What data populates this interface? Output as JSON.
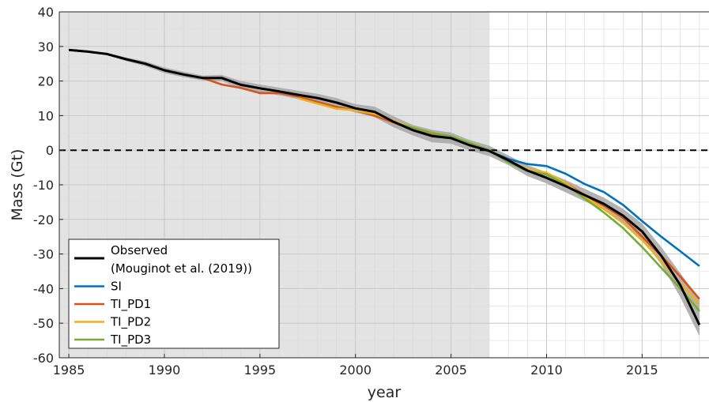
{
  "chart_data": {
    "type": "line",
    "title": "",
    "xlabel": "year",
    "ylabel": "Mass (Gt)",
    "xlim": [
      1984.5,
      2018.5
    ],
    "ylim": [
      -60,
      40
    ],
    "xticks": [
      1985,
      1990,
      1995,
      2000,
      2005,
      2010,
      2015
    ],
    "yticks": [
      -60,
      -50,
      -40,
      -30,
      -20,
      -10,
      0,
      10,
      20,
      30,
      40
    ],
    "grid": true,
    "shaded_region": {
      "x_start": 1984.5,
      "x_end": 2007,
      "color": "#e3e3e3"
    },
    "reference_line": {
      "y": 0,
      "style": "dashed",
      "color": "#000000"
    },
    "legend_position": "bottom-left",
    "legend": [
      {
        "label": "Observed",
        "label_line2": "(Mouginot et al. (2019))",
        "color": "#000000"
      },
      {
        "label": "SI",
        "color": "#0072BD"
      },
      {
        "label": "TI_PD1",
        "color": "#D95319"
      },
      {
        "label": "TI_PD2",
        "color": "#EDB120"
      },
      {
        "label": "TI_PD3",
        "color": "#77AC30"
      }
    ],
    "uncertainty_band": {
      "color": "#a6a6a6",
      "x": [
        1985,
        1986,
        1987,
        1988,
        1989,
        1990,
        1991,
        1992,
        1993,
        1994,
        1995,
        1996,
        1997,
        1998,
        1999,
        2000,
        2001,
        2002,
        2003,
        2004,
        2005,
        2006,
        2007,
        2008,
        2009,
        2010,
        2011,
        2012,
        2013,
        2014,
        2015,
        2016,
        2017,
        2018
      ],
      "upper": [
        29.3,
        28.8,
        28.1,
        26.8,
        25.7,
        23.9,
        22.7,
        21.6,
        21.8,
        20,
        19,
        18.1,
        17.2,
        16.3,
        15.1,
        13.3,
        12.6,
        9.8,
        7.3,
        5.9,
        5.1,
        2.9,
        1.3,
        -1.5,
        -4.3,
        -6.4,
        -8.6,
        -11.2,
        -13.7,
        -16.9,
        -21.2,
        -28,
        -35.5,
        -43.2
      ],
      "lower": [
        28.7,
        28.2,
        27.5,
        25.8,
        24.3,
        22.3,
        21.1,
        20.2,
        20,
        17.8,
        16.8,
        15.9,
        14.8,
        13.9,
        12.5,
        10.9,
        9.6,
        6.6,
        4.3,
        2.3,
        1.9,
        -0.1,
        -1.7,
        -4.3,
        -7.5,
        -9.6,
        -12.2,
        -14.8,
        -17.3,
        -20.9,
        -25.8,
        -33,
        -42.5,
        -53.8
      ]
    },
    "series": [
      {
        "name": "Observed",
        "x": [
          1985,
          1986,
          1987,
          1988,
          1989,
          1990,
          1991,
          1992,
          1993,
          1994,
          1995,
          1996,
          1997,
          1998,
          1999,
          2000,
          2001,
          2002,
          2003,
          2004,
          2005,
          2006,
          2007,
          2008,
          2009,
          2010,
          2011,
          2012,
          2013,
          2014,
          2015,
          2016,
          2017,
          2018
        ],
        "values": [
          29,
          28.5,
          27.8,
          26.3,
          25,
          23.1,
          21.9,
          20.9,
          20.9,
          18.9,
          17.9,
          17,
          16,
          15.1,
          13.8,
          12.1,
          11.1,
          8.2,
          5.8,
          4.1,
          3.5,
          1.4,
          -0.2,
          -2.9,
          -5.9,
          -8,
          -10.4,
          -13,
          -15.5,
          -18.9,
          -23.5,
          -30.5,
          -39,
          -50.5
        ]
      },
      {
        "name": "SI",
        "x": [
          2007,
          2008,
          2009,
          2010,
          2011,
          2012,
          2013,
          2014,
          2015,
          2016,
          2017,
          2018
        ],
        "values": [
          -0.2,
          -2.5,
          -4,
          -4.6,
          -6.8,
          -9.8,
          -12.1,
          -15.8,
          -20.5,
          -25,
          -29.2,
          -33.5
        ]
      },
      {
        "name": "TI_PD1",
        "x": [
          1992,
          1993,
          1994,
          1995,
          1996,
          1997,
          1998,
          1999,
          2000,
          2001,
          2002,
          2003,
          2004,
          2005,
          2006,
          2007,
          2008,
          2009,
          2010,
          2011,
          2012,
          2013,
          2014,
          2015,
          2016,
          2017,
          2018
        ],
        "values": [
          20.9,
          19,
          18,
          16.5,
          16.5,
          15.5,
          14,
          12.5,
          11.5,
          10,
          8,
          6,
          4.5,
          3.5,
          1.5,
          -0.2,
          -3,
          -5.8,
          -7,
          -9.5,
          -13,
          -16,
          -19.5,
          -25,
          -30.5,
          -36.5,
          -43
        ]
      },
      {
        "name": "TI_PD2",
        "x": [
          1997,
          1998,
          1999,
          2000,
          2001,
          2002,
          2003,
          2004,
          2005,
          2006,
          2007,
          2008,
          2009,
          2010,
          2011,
          2012,
          2013,
          2014,
          2015,
          2016,
          2017,
          2018
        ],
        "values": [
          15,
          13.5,
          12,
          11.5,
          10.5,
          8.5,
          6.5,
          5,
          4,
          2,
          0,
          -3,
          -5.5,
          -6.5,
          -9.5,
          -13.5,
          -17,
          -21,
          -26,
          -32,
          -38.5,
          -44.5
        ]
      },
      {
        "name": "TI_PD3",
        "x": [
          2002,
          2003,
          2004,
          2005,
          2006,
          2007,
          2008,
          2009,
          2010,
          2011,
          2012,
          2013,
          2014,
          2015,
          2016,
          2017,
          2018
        ],
        "values": [
          8,
          6.5,
          5,
          4,
          2,
          0,
          -3.5,
          -6,
          -7,
          -10,
          -14,
          -18,
          -22.5,
          -28,
          -34,
          -40,
          -46.5
        ]
      }
    ]
  }
}
